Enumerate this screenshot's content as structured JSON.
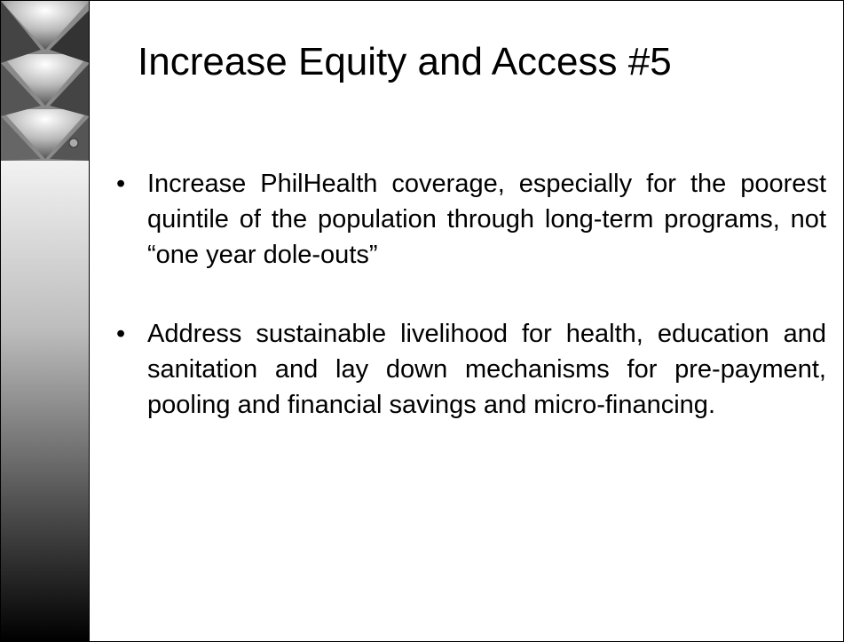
{
  "slide": {
    "title": "Increase Equity and Access #5",
    "bullets": [
      "Increase PhilHealth coverage, especially for the poorest quintile of the population through long-term programs, not “one year dole-outs”",
      "Address sustainable livelihood for health, education and sanitation and lay down mechanisms for pre-payment, pooling and financial savings and micro-financing."
    ]
  }
}
